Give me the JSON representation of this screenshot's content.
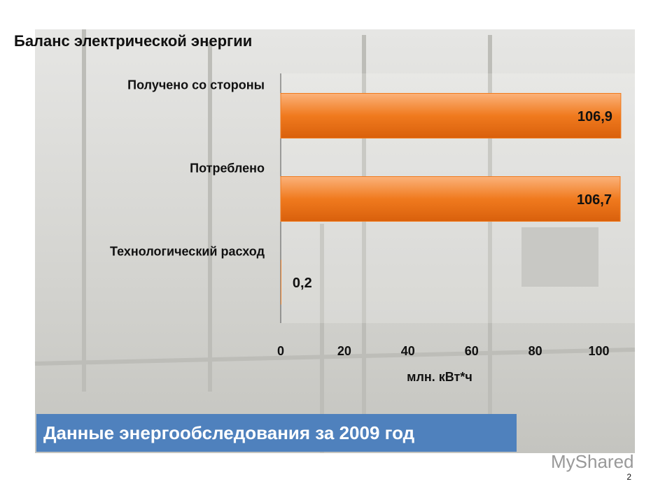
{
  "chart_data": {
    "type": "bar",
    "orientation": "horizontal",
    "title": "Баланс электрической энергии",
    "categories": [
      "Получено со стороны",
      "Потреблено",
      "Технологический расход"
    ],
    "values": [
      106.9,
      106.7,
      0.2
    ],
    "value_labels": [
      "106,9",
      "106,7",
      "0,2"
    ],
    "color": "#f07a1e",
    "xlim": [
      0,
      110
    ],
    "xticks": [
      0,
      20,
      40,
      60,
      80,
      100
    ],
    "xlabel": "млн. кВт*ч"
  },
  "banner": "Данные энергообследования за 2009 год",
  "watermark": "MyShared",
  "page_number": "2"
}
